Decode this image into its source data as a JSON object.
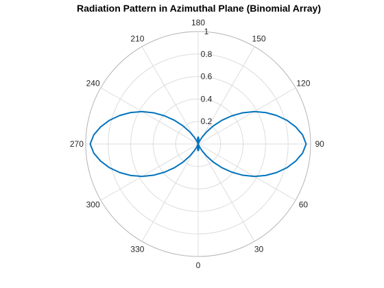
{
  "chart_data": {
    "type": "line",
    "title": "Radiation Pattern in Azimuthal Plane (Binomial Array)",
    "coordinate_system": "polar",
    "theta_zero_location": "bottom",
    "theta_direction": "counterclockwise",
    "theta_ticks": [
      "0",
      "30",
      "60",
      "90",
      "120",
      "150",
      "180",
      "210",
      "240",
      "270",
      "300",
      "330"
    ],
    "theta_tick_values": [
      0,
      30,
      60,
      90,
      120,
      150,
      180,
      210,
      240,
      270,
      300,
      330
    ],
    "r_ticks": [
      "0.2",
      "0.4",
      "0.6",
      "0.8",
      "1"
    ],
    "r_tick_values": [
      0.2,
      0.4,
      0.6,
      0.8,
      1.0
    ],
    "rlim": [
      0,
      1
    ],
    "grid": true,
    "series": [
      {
        "color": "#0072bd",
        "theta_deg": [
          0,
          5,
          10,
          15,
          20,
          25,
          30,
          35,
          40,
          45,
          50,
          55,
          60,
          65,
          70,
          75,
          80,
          85,
          90,
          95,
          100,
          105,
          110,
          115,
          120,
          125,
          130,
          135,
          140,
          145,
          150,
          155,
          160,
          165,
          170,
          175,
          180,
          185,
          190,
          195,
          200,
          205,
          210,
          215,
          220,
          225,
          230,
          235,
          240,
          245,
          250,
          255,
          260,
          265,
          270,
          275,
          280,
          285,
          290,
          295,
          300,
          305,
          310,
          315,
          320,
          325,
          330,
          335,
          340,
          345,
          350,
          355,
          360
        ],
        "r": [
          0.062,
          0.052,
          0.029,
          0.007,
          0.004,
          0.027,
          0.071,
          0.133,
          0.211,
          0.298,
          0.389,
          0.484,
          0.576,
          0.662,
          0.742,
          0.816,
          0.88,
          0.932,
          0.96,
          0.932,
          0.88,
          0.816,
          0.742,
          0.662,
          0.576,
          0.484,
          0.389,
          0.298,
          0.211,
          0.133,
          0.071,
          0.027,
          0.004,
          0.007,
          0.029,
          0.052,
          0.062,
          0.052,
          0.029,
          0.007,
          0.004,
          0.027,
          0.071,
          0.133,
          0.211,
          0.298,
          0.389,
          0.484,
          0.576,
          0.662,
          0.742,
          0.816,
          0.88,
          0.932,
          0.96,
          0.932,
          0.88,
          0.816,
          0.742,
          0.662,
          0.576,
          0.484,
          0.389,
          0.298,
          0.211,
          0.133,
          0.071,
          0.027,
          0.004,
          0.007,
          0.029,
          0.052,
          0.062
        ]
      }
    ]
  }
}
